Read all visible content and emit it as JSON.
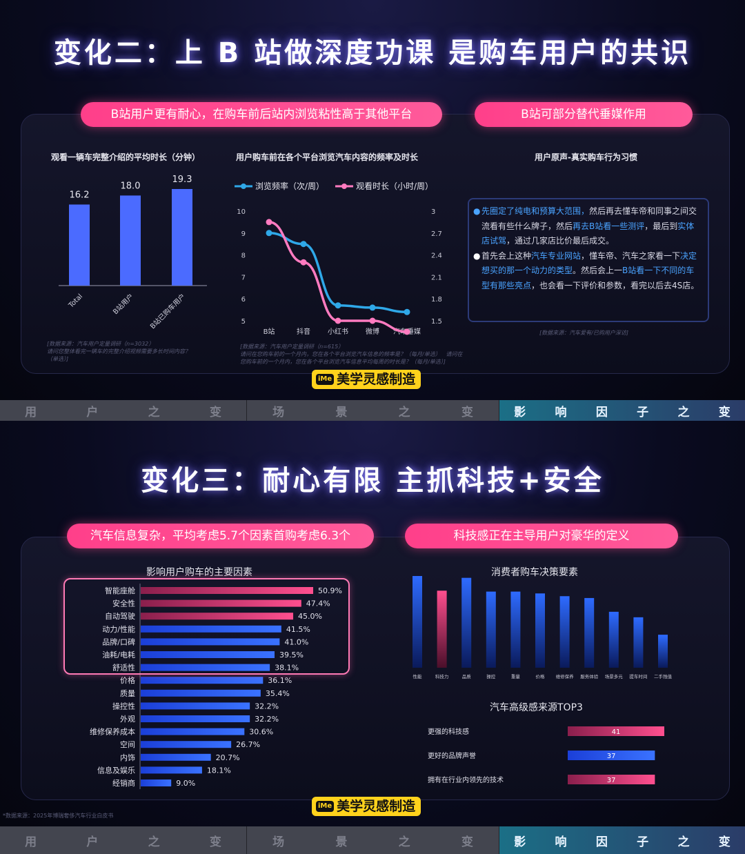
{
  "slide1": {
    "title": "变化二：上 B 站做深度功课 是购车用户的共识",
    "pill_left": "B站用户更有耐心，在购车前后站内浏览粘性高于其他平台",
    "pill_right": "B站可部分替代垂媒作用",
    "chart1_title": "观看一辆车完整介绍的平均时长（分钟）",
    "chart2_title": "用户购车前在各个平台浏览汽车内容的频率及时长",
    "panel3_title": "用户原声-真实购车行为习惯",
    "source1": "[数据来源：汽车用户定量调研（n=3032）\n请问您整体看完一辆车的完整介绍视频需要多长时间内容？\n（单选）]",
    "source2": "[数据来源：汽车用户定量调研（n=615）\n请问在您购车前的一个月内，您在各个平台浏览汽车信息的频率是？（每月/单选）   请问在\n您购车前的一个月内，您在各个平台浏览汽车信息平均每周的时长是？（每月/单选）]",
    "source3": "[数据来源：汽车爱有/已购用户深访]",
    "quote": [
      {
        "segments": [
          {
            "t": "先圈定了纯电和预算大范围，",
            "hl": true
          },
          {
            "t": "然后再去懂车帝和同事之间交流看有些什么牌子，然后",
            "hl": false
          },
          {
            "t": "再去B站看一些测评",
            "hl": true
          },
          {
            "t": "，最后到",
            "hl": false
          },
          {
            "t": "实体店试驾",
            "hl": true
          },
          {
            "t": "，通过几家店比价最后成交。",
            "hl": false
          }
        ]
      },
      {
        "segments": [
          {
            "t": "首先会上这种",
            "hl": false
          },
          {
            "t": "汽车专业网站",
            "hl": true
          },
          {
            "t": "，懂车帝、汽车之家看一下",
            "hl": false
          },
          {
            "t": "决定想买的那一个动力的类型",
            "hl": true
          },
          {
            "t": "。然后会上一",
            "hl": false
          },
          {
            "t": "B站看一下不同的车型有那些亮点",
            "hl": true
          },
          {
            "t": "，也会看一下评价和参数，看完以后去4S店。",
            "hl": false
          }
        ]
      }
    ],
    "logo_text": "美学灵感制造",
    "logo_badge": "iMe"
  },
  "navbar": [
    "用",
    "户",
    "之",
    "变",
    "场",
    "景",
    "之",
    "变",
    "影",
    "响",
    "因",
    "子",
    "之",
    "变"
  ],
  "slide2": {
    "title": "变化三：耐心有限 主抓科技+安全",
    "pill_left": "汽车信息复杂，平均考虑5.7个因素首购考虑6.3个",
    "pill_right": "科技感正在主导用户对豪华的定义",
    "chart4_title": "影响用户购车的主要因素",
    "chart5_title": "消费者购车决策要素",
    "chart6_title": "汽车高级感来源TOP3",
    "footnote": "*数据来源：2025年博瑞奢侈汽车行业白皮书",
    "logo_text": "美学灵感制造",
    "logo_badge": "iMe"
  },
  "colors": {
    "pink": "#ff4f8f",
    "blue": "#2e6bff",
    "line_blue": "#2fa8e8",
    "line_pink": "#ff7bc0",
    "bar_blue": "#4b6bff"
  },
  "chart_data": [
    {
      "type": "bar",
      "title": "观看一辆车完整介绍的平均时长（分钟）",
      "categories": [
        "Total",
        "B站用户",
        "B站已购车用户"
      ],
      "values": [
        16.2,
        18.0,
        19.3
      ]
    },
    {
      "type": "line",
      "title": "用户购车前在各个平台浏览汽车内容的频率及时长",
      "categories": [
        "B站",
        "抖音",
        "小红书",
        "微博",
        "汽车垂媒"
      ],
      "series": [
        {
          "name": "浏览频率（次/周）",
          "axis": "left",
          "values": [
            9.0,
            8.5,
            5.7,
            5.6,
            5.4
          ]
        },
        {
          "name": "观看时长（小时/周）",
          "axis": "right",
          "values": [
            2.85,
            2.3,
            1.5,
            1.5,
            1.35
          ]
        }
      ],
      "y_left": {
        "min": 5,
        "max": 10,
        "ticks": [
          5,
          6,
          7,
          8,
          9,
          10
        ]
      },
      "y_right": {
        "min": 1.5,
        "max": 3,
        "ticks": [
          "1.5",
          "1.8",
          "2.1",
          "2.4",
          "2.7",
          "3"
        ]
      }
    },
    {
      "type": "bar",
      "orientation": "horizontal",
      "title": "影响用户购车的主要因素",
      "categories": [
        "智能座舱",
        "安全性",
        "自动驾驶",
        "动力/性能",
        "品牌/口碑",
        "油耗/电耗",
        "舒适性",
        "价格",
        "质量",
        "操控性",
        "外观",
        "维修保养成本",
        "空间",
        "内饰",
        "信息及娱乐",
        "经销商"
      ],
      "values": [
        50.9,
        47.4,
        45.0,
        41.5,
        41.0,
        39.5,
        38.1,
        36.1,
        35.4,
        32.2,
        32.2,
        30.6,
        26.7,
        20.7,
        18.1,
        9.0
      ],
      "labels": [
        "50.9%",
        "47.4%",
        "45.0%",
        "41.5%",
        "41.0%",
        "39.5%",
        "38.1%",
        "36.1%",
        "35.4%",
        "32.2%",
        "32.2%",
        "30.6%",
        "26.7%",
        "20.7%",
        "18.1%",
        "9.0%"
      ],
      "highlight_top": 3
    },
    {
      "type": "bar",
      "title": "消费者购车决策要素",
      "categories": [
        "性能",
        "科技力",
        "品质",
        "操控",
        "重量",
        "价格",
        "维修保养",
        "服务体验",
        "场景多元",
        "提车时间",
        "二手残值"
      ],
      "values": [
        100,
        84,
        98,
        83,
        83,
        81,
        78,
        76,
        61,
        55,
        36
      ],
      "highlight_index": 1
    },
    {
      "type": "bar",
      "orientation": "horizontal",
      "title": "汽车高级感来源TOP3",
      "categories": [
        "更强的科技感",
        "更好的品牌声誉",
        "拥有在行业内领先的技术"
      ],
      "values": [
        41,
        37,
        37
      ]
    }
  ]
}
